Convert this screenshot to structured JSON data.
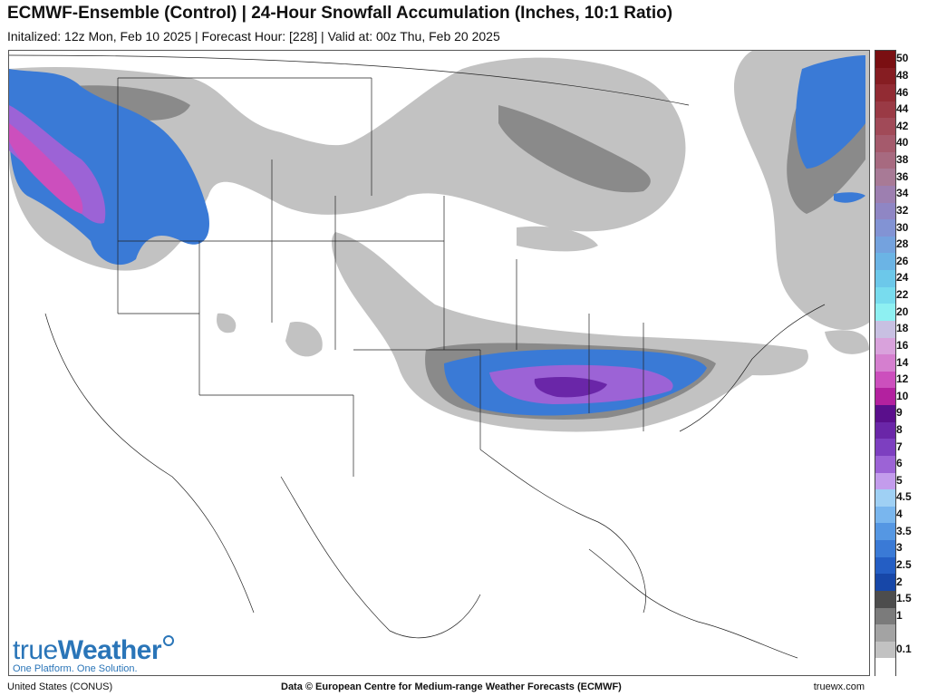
{
  "header": {
    "title": "ECMWF-Ensemble (Control) | 24-Hour Snowfall Accumulation (Inches, 10:1 Ratio)",
    "subtitle": "Initalized: 12z Mon, Feb 10 2025 | Forecast Hour: [228] | Valid at: 00z Thu, Feb 20 2025"
  },
  "legend": {
    "items": [
      {
        "label": "50",
        "color": "#7a0f12"
      },
      {
        "label": "48",
        "color": "#861d22"
      },
      {
        "label": "46",
        "color": "#922b33"
      },
      {
        "label": "44",
        "color": "#9a3a45"
      },
      {
        "label": "42",
        "color": "#a14a58"
      },
      {
        "label": "40",
        "color": "#a55a6c"
      },
      {
        "label": "38",
        "color": "#a76a80"
      },
      {
        "label": "36",
        "color": "#a87a96"
      },
      {
        "label": "34",
        "color": "#9d7fb0"
      },
      {
        "label": "32",
        "color": "#8f86c4"
      },
      {
        "label": "30",
        "color": "#8293d4"
      },
      {
        "label": "28",
        "color": "#74a2de"
      },
      {
        "label": "26",
        "color": "#6bb4e5"
      },
      {
        "label": "24",
        "color": "#6cc8ea"
      },
      {
        "label": "22",
        "color": "#78dcee"
      },
      {
        "label": "20",
        "color": "#8ef0f2"
      },
      {
        "label": "18",
        "color": "#c8c0e2"
      },
      {
        "label": "16",
        "color": "#d9a2dc"
      },
      {
        "label": "14",
        "color": "#d57fcf"
      },
      {
        "label": "12",
        "color": "#cc4fbd"
      },
      {
        "label": "10",
        "color": "#b3219f"
      },
      {
        "label": "9",
        "color": "#5a0f8c"
      },
      {
        "label": "8",
        "color": "#6a26a8"
      },
      {
        "label": "7",
        "color": "#7d3fc0"
      },
      {
        "label": "6",
        "color": "#9c63d6"
      },
      {
        "label": "5",
        "color": "#c39cec"
      },
      {
        "label": "4.5",
        "color": "#9fd0f4"
      },
      {
        "label": "4",
        "color": "#79b6ee"
      },
      {
        "label": "3.5",
        "color": "#5597e3"
      },
      {
        "label": "3",
        "color": "#3a7ad6"
      },
      {
        "label": "2.5",
        "color": "#245ec4"
      },
      {
        "label": "2",
        "color": "#1747a8"
      },
      {
        "label": "1.5",
        "color": "#4d4d4d"
      },
      {
        "label": "1",
        "color": "#7b7b7b"
      },
      {
        "label": "",
        "color": "#a3a3a3"
      },
      {
        "label": "0.1",
        "color": "#c2c2c2"
      },
      {
        "label": "",
        "color": "#ffffff"
      }
    ]
  },
  "logo": {
    "name_light": "true",
    "name_bold": "Weather",
    "tagline": "One Platform. One Solution."
  },
  "footer": {
    "region": "United States (CONUS)",
    "credit": "Data © European Centre for Medium-range Weather Forecasts (ECMWF)",
    "site": "truewx.com"
  }
}
